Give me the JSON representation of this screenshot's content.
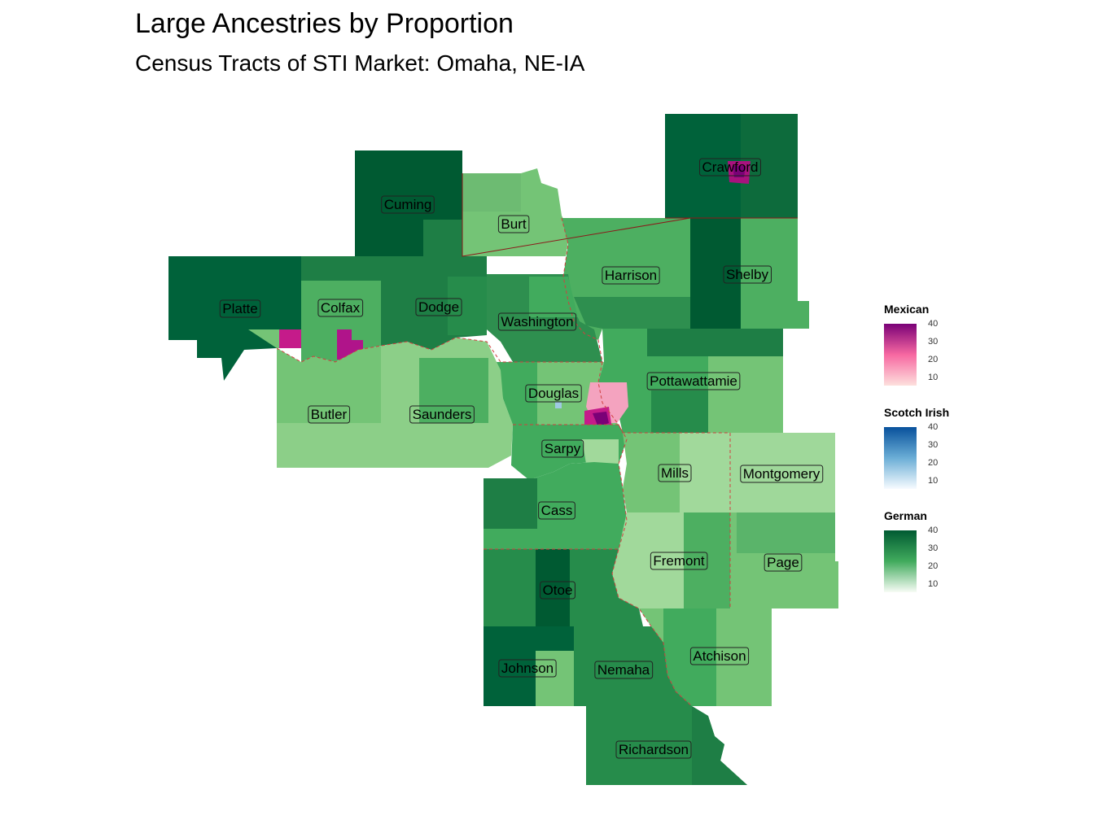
{
  "title": "Large Ancestries by Proportion",
  "subtitle": "Census Tracts of STI Market: Omaha, NE-IA",
  "counties": [
    {
      "id": "crawford",
      "label": "Crawford"
    },
    {
      "id": "cuming",
      "label": "Cuming"
    },
    {
      "id": "burt",
      "label": "Burt"
    },
    {
      "id": "harrison",
      "label": "Harrison"
    },
    {
      "id": "shelby",
      "label": "Shelby"
    },
    {
      "id": "platte",
      "label": "Platte"
    },
    {
      "id": "colfax",
      "label": "Colfax"
    },
    {
      "id": "dodge",
      "label": "Dodge"
    },
    {
      "id": "washington",
      "label": "Washington"
    },
    {
      "id": "pottawattamie",
      "label": "Pottawattamie"
    },
    {
      "id": "douglas",
      "label": "Douglas"
    },
    {
      "id": "butler",
      "label": "Butler"
    },
    {
      "id": "saunders",
      "label": "Saunders"
    },
    {
      "id": "sarpy",
      "label": "Sarpy"
    },
    {
      "id": "mills",
      "label": "Mills"
    },
    {
      "id": "montgomery",
      "label": "Montgomery"
    },
    {
      "id": "cass",
      "label": "Cass"
    },
    {
      "id": "fremont",
      "label": "Fremont"
    },
    {
      "id": "page",
      "label": "Page"
    },
    {
      "id": "otoe",
      "label": "Otoe"
    },
    {
      "id": "atchison",
      "label": "Atchison"
    },
    {
      "id": "johnson",
      "label": "Johnson"
    },
    {
      "id": "nemaha",
      "label": "Nemaha"
    },
    {
      "id": "richardson",
      "label": "Richardson"
    }
  ],
  "legends": [
    {
      "id": "mexican",
      "title": "Mexican",
      "ticks": [
        "40",
        "30",
        "20",
        "10"
      ],
      "color_low": "#fde0dd",
      "color_mid": "#f768a1",
      "color_high": "#7a0177"
    },
    {
      "id": "scotch_irish",
      "title": "Scotch Irish",
      "ticks": [
        "40",
        "30",
        "20",
        "10"
      ],
      "color_low": "#f7fbff",
      "color_mid": "#6baed6",
      "color_high": "#08519c"
    },
    {
      "id": "german",
      "title": "German",
      "ticks": [
        "40",
        "30",
        "20",
        "10"
      ],
      "color_low": "#f7fcf5",
      "color_mid": "#41ab5d",
      "color_high": "#005a32"
    }
  ],
  "colors": {
    "county_border_nebraska": "#8b0000",
    "county_border_iowa": "#c0392b",
    "german_dark": "#005a32",
    "german_mid": "#238b45",
    "german_light": "#74c476",
    "german_pale": "#a1d99b",
    "mexican_dark": "#7a0177",
    "mexican_mid": "#c51b8a",
    "mexican_light": "#fbb4c3"
  }
}
